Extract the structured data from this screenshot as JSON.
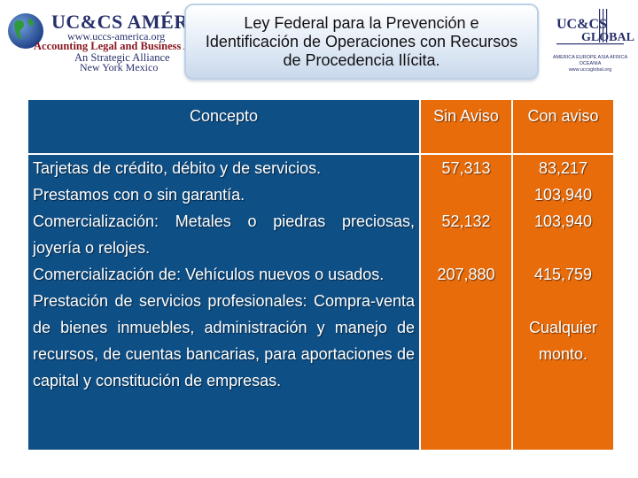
{
  "header": {
    "left_logo": {
      "brand": "UC&CS AMÉRICA",
      "url": "www.uccs-america.org",
      "tagline": "Accounting Legal and Business Advi",
      "alliance": "An Strategic Alliance",
      "cities": "New York  Mexico"
    },
    "title": "Ley Federal para la Prevención e Identificación de Operaciones con Recursos de Procedencia Ilícita.",
    "right_logo": {
      "brand_top": "UC&CS",
      "brand_bottom": "GLOBAL",
      "line1": "AMERICA  EUROPE  ASIA  AFRICA  OCEANIA",
      "url": "www.uccsglobal.org"
    }
  },
  "table": {
    "headers": {
      "concepto": "Concepto",
      "sin_aviso": "Sin Aviso",
      "con_aviso": "Con aviso"
    },
    "rows": [
      {
        "concepto": "Tarjetas de crédito, débito y de servicios.",
        "sin_aviso": "57,313",
        "con_aviso": "83,217"
      },
      {
        "concepto": "Prestamos con o sin garantía.",
        "sin_aviso": "",
        "con_aviso": "103,940"
      },
      {
        "concepto": "Comercialización: Metales o piedras preciosas, joyería o relojes.",
        "sin_aviso": "52,132",
        "con_aviso": "103,940"
      },
      {
        "concepto": "Comercialización de: Vehículos nuevos o usados.",
        "sin_aviso": "207,880",
        "con_aviso": "415,759"
      },
      {
        "concepto": "Prestación de servicios profesionales: Compra-venta de bienes inmuebles, administración y manejo de recursos, de cuentas bancarias, para aportaciones de capital y constitución de empresas.",
        "sin_aviso": "",
        "con_aviso": "Cualquier monto."
      }
    ]
  },
  "colors": {
    "concept_column": "#0e4f86",
    "amount_columns": "#e96c0b",
    "brand_navy": "#27306b",
    "brand_red": "#8a1822"
  }
}
